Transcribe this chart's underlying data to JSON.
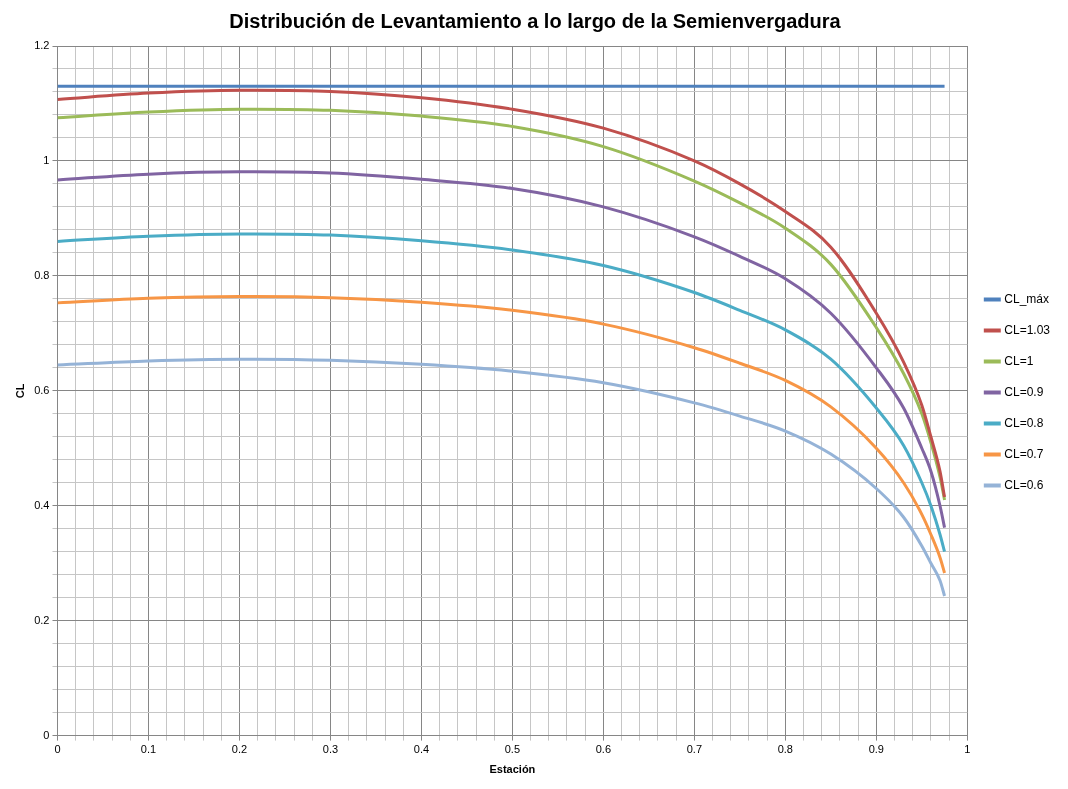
{
  "chart_data": {
    "type": "line",
    "title": "Distribución de Levantamiento a lo largo de la Semienvergadura",
    "xlabel": "Estación",
    "ylabel": "CL",
    "x": [
      0,
      0.1,
      0.2,
      0.3,
      0.4,
      0.5,
      0.6,
      0.7,
      0.75,
      0.8,
      0.85,
      0.9,
      0.93,
      0.95,
      0.96,
      0.97,
      0.975
    ],
    "series": [
      {
        "name": "CL_máx",
        "color": "#4f81bd",
        "values": [
          1.13,
          1.13,
          1.13,
          1.13,
          1.13,
          1.13,
          1.13,
          1.13,
          1.13,
          1.13,
          1.13,
          1.13,
          1.13,
          1.13,
          1.13,
          1.13,
          1.13
        ]
      },
      {
        "name": "CL=1.03",
        "color": "#c0504d",
        "values": [
          1.107,
          1.118,
          1.123,
          1.121,
          1.11,
          1.09,
          1.057,
          1.0,
          0.96,
          0.912,
          0.85,
          0.735,
          0.65,
          0.575,
          0.52,
          0.46,
          0.415
        ]
      },
      {
        "name": "CL=1",
        "color": "#9bbb59",
        "values": [
          1.075,
          1.085,
          1.09,
          1.088,
          1.078,
          1.06,
          1.025,
          0.965,
          0.927,
          0.883,
          0.82,
          0.71,
          0.63,
          0.56,
          0.51,
          0.45,
          0.41
        ]
      },
      {
        "name": "CL=0.9",
        "color": "#8064a2",
        "values": [
          0.967,
          0.977,
          0.981,
          0.979,
          0.968,
          0.952,
          0.92,
          0.868,
          0.834,
          0.795,
          0.735,
          0.64,
          0.57,
          0.5,
          0.46,
          0.4,
          0.362
        ]
      },
      {
        "name": "CL=0.8",
        "color": "#4bacc6",
        "values": [
          0.86,
          0.869,
          0.873,
          0.871,
          0.861,
          0.845,
          0.818,
          0.771,
          0.74,
          0.706,
          0.655,
          0.57,
          0.505,
          0.44,
          0.4,
          0.35,
          0.32
        ]
      },
      {
        "name": "CL=0.7",
        "color": "#f79646",
        "values": [
          0.753,
          0.761,
          0.764,
          0.762,
          0.754,
          0.74,
          0.716,
          0.675,
          0.648,
          0.618,
          0.572,
          0.5,
          0.44,
          0.385,
          0.35,
          0.31,
          0.283
        ]
      },
      {
        "name": "CL=0.6",
        "color": "#95b3d7",
        "values": [
          0.645,
          0.652,
          0.655,
          0.653,
          0.646,
          0.634,
          0.614,
          0.579,
          0.556,
          0.53,
          0.49,
          0.43,
          0.38,
          0.33,
          0.3,
          0.27,
          0.243
        ]
      }
    ],
    "xlim": [
      0,
      1
    ],
    "ylim": [
      0,
      1.2
    ],
    "xticks": [
      0,
      {
        "value": 0.02,
        "label": null
      },
      {
        "value": 0.04,
        "label": null
      },
      {
        "value": 0.06,
        "label": null
      },
      {
        "value": 0.08,
        "label": null
      },
      0.1,
      {
        "value": 0.12,
        "label": null
      },
      {
        "value": 0.14,
        "label": null
      },
      {
        "value": 0.16,
        "label": null
      },
      {
        "value": 0.18,
        "label": null
      },
      0.2,
      {
        "value": 0.22,
        "label": null
      },
      {
        "value": 0.24,
        "label": null
      },
      {
        "value": 0.26,
        "label": null
      },
      {
        "value": 0.28,
        "label": null
      },
      0.3,
      {
        "value": 0.32,
        "label": null
      },
      {
        "value": 0.34,
        "label": null
      },
      {
        "value": 0.36,
        "label": null
      },
      {
        "value": 0.38,
        "label": null
      },
      0.4,
      {
        "value": 0.42,
        "label": null
      },
      {
        "value": 0.44,
        "label": null
      },
      {
        "value": 0.46,
        "label": null
      },
      {
        "value": 0.48,
        "label": null
      },
      0.5,
      {
        "value": 0.52,
        "label": null
      },
      {
        "value": 0.54,
        "label": null
      },
      {
        "value": 0.56,
        "label": null
      },
      {
        "value": 0.58,
        "label": null
      },
      0.6,
      {
        "value": 0.62,
        "label": null
      },
      {
        "value": 0.64,
        "label": null
      },
      {
        "value": 0.66,
        "label": null
      },
      {
        "value": 0.68,
        "label": null
      },
      0.7,
      {
        "value": 0.72,
        "label": null
      },
      {
        "value": 0.74,
        "label": null
      },
      {
        "value": 0.76,
        "label": null
      },
      {
        "value": 0.78,
        "label": null
      },
      0.8,
      {
        "value": 0.82,
        "label": null
      },
      {
        "value": 0.84,
        "label": null
      },
      {
        "value": 0.86,
        "label": null
      },
      {
        "value": 0.88,
        "label": null
      },
      0.9,
      {
        "value": 0.92,
        "label": null
      },
      {
        "value": 0.94,
        "label": null
      },
      {
        "value": 0.96,
        "label": null
      },
      {
        "value": 0.98,
        "label": null
      },
      1
    ],
    "yticks": [
      0,
      {
        "value": 0.04,
        "label": null
      },
      {
        "value": 0.08,
        "label": null
      },
      {
        "value": 0.12,
        "label": null
      },
      {
        "value": 0.16,
        "label": null
      },
      0.2,
      {
        "value": 0.24,
        "label": null
      },
      {
        "value": 0.28,
        "label": null
      },
      {
        "value": 0.32,
        "label": null
      },
      {
        "value": 0.36,
        "label": null
      },
      0.4,
      {
        "value": 0.44,
        "label": null
      },
      {
        "value": 0.48,
        "label": null
      },
      {
        "value": 0.52,
        "label": null
      },
      {
        "value": 0.56,
        "label": null
      },
      0.6,
      {
        "value": 0.64,
        "label": null
      },
      {
        "value": 0.68,
        "label": null
      },
      {
        "value": 0.72,
        "label": null
      },
      {
        "value": 0.76,
        "label": null
      },
      0.8,
      {
        "value": 0.84,
        "label": null
      },
      {
        "value": 0.88,
        "label": null
      },
      {
        "value": 0.92,
        "label": null
      },
      {
        "value": 0.96,
        "label": null
      },
      1,
      {
        "value": 1.04,
        "label": null
      },
      {
        "value": 1.08,
        "label": null
      },
      {
        "value": 1.12,
        "label": null
      },
      {
        "value": 1.16,
        "label": null
      },
      1.2
    ],
    "grid": true,
    "legend": "right",
    "marker": "none",
    "line_style": "solid"
  }
}
